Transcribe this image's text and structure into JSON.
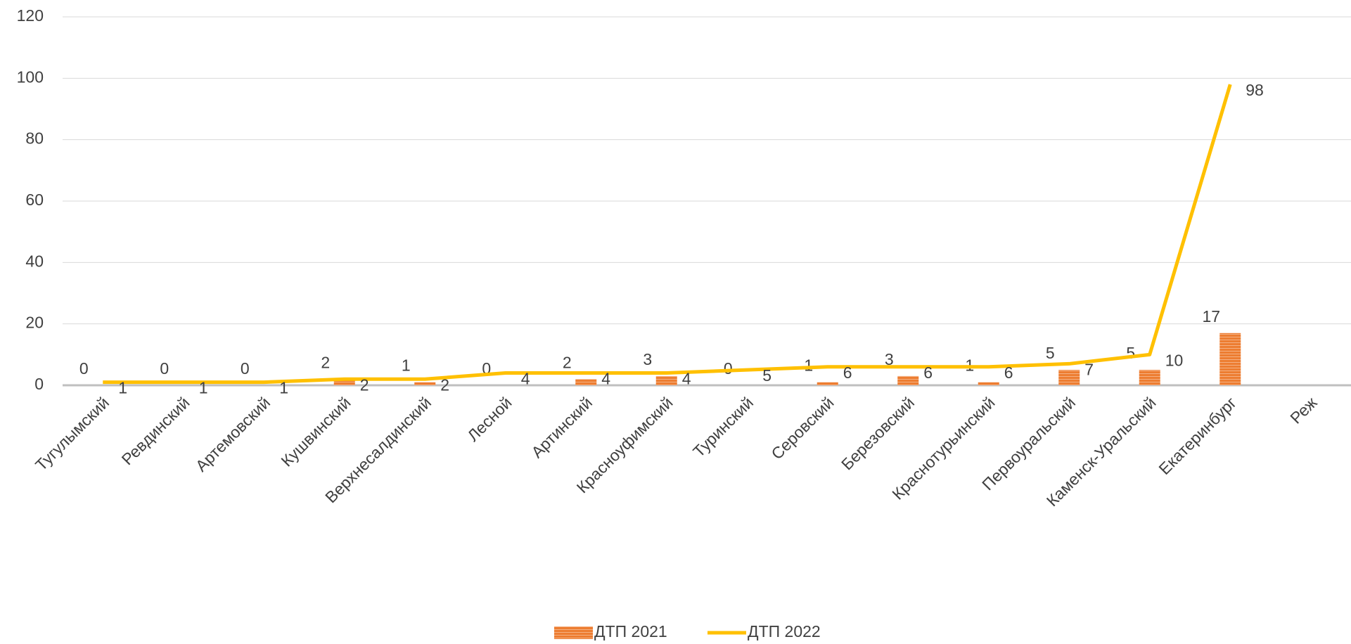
{
  "chart_data": {
    "type": "bar-line",
    "categories": [
      "Тугулымский",
      "Ревдинский",
      "Артемовский",
      "Кушвинский",
      "Верхнесалдинский",
      "Лесной",
      "Артинский",
      "Красноуфимский",
      "Туринский",
      "Серовский",
      "Березовский",
      "Краснотурьинский",
      "Первоуральский",
      "Каменск-Уральский",
      "Екатеринбург",
      "Реж"
    ],
    "series": [
      {
        "name": "ДТП 2021",
        "type": "bar",
        "color": "#ed7d31",
        "values": [
          0,
          0,
          0,
          2,
          1,
          0,
          2,
          3,
          0,
          1,
          3,
          1,
          5,
          5,
          17,
          null
        ]
      },
      {
        "name": "ДТП 2022",
        "type": "line",
        "color": "#ffc000",
        "values": [
          1,
          1,
          1,
          2,
          2,
          4,
          4,
          4,
          5,
          6,
          6,
          6,
          7,
          10,
          98,
          null
        ]
      }
    ],
    "ylim": [
      0,
      120
    ],
    "yticks": [
      0,
      20,
      40,
      60,
      80,
      100,
      120
    ],
    "grid": true,
    "legend": "bottom"
  }
}
